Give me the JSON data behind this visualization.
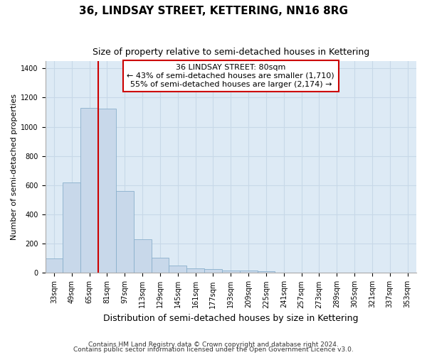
{
  "title": "36, LINDSAY STREET, KETTERING, NN16 8RG",
  "subtitle": "Size of property relative to semi-detached houses in Kettering",
  "xlabel": "Distribution of semi-detached houses by size in Kettering",
  "ylabel": "Number of semi-detached properties",
  "categories": [
    "33sqm",
    "49sqm",
    "65sqm",
    "81sqm",
    "97sqm",
    "113sqm",
    "129sqm",
    "145sqm",
    "161sqm",
    "177sqm",
    "193sqm",
    "209sqm",
    "225sqm",
    "241sqm",
    "257sqm",
    "273sqm",
    "289sqm",
    "305sqm",
    "321sqm",
    "337sqm",
    "353sqm"
  ],
  "values": [
    100,
    620,
    1130,
    1125,
    560,
    230,
    105,
    52,
    33,
    28,
    17,
    17,
    10,
    0,
    0,
    0,
    0,
    0,
    0,
    0,
    0
  ],
  "bar_color": "#c8d8ea",
  "bar_edge_color": "#8ab0cc",
  "vline_x": 2.5,
  "vline_color": "#cc0000",
  "annotation_text": "36 LINDSAY STREET: 80sqm\n← 43% of semi-detached houses are smaller (1,710)\n55% of semi-detached houses are larger (2,174) →",
  "annotation_box_facecolor": "white",
  "annotation_box_edgecolor": "#cc0000",
  "ylim": [
    0,
    1450
  ],
  "yticks": [
    0,
    200,
    400,
    600,
    800,
    1000,
    1200,
    1400
  ],
  "grid_color": "#c8d8e8",
  "background_color": "#ddeaf5",
  "footnote_line1": "Contains HM Land Registry data © Crown copyright and database right 2024.",
  "footnote_line2": "Contains public sector information licensed under the Open Government Licence v3.0.",
  "title_fontsize": 11,
  "subtitle_fontsize": 9,
  "xlabel_fontsize": 9,
  "ylabel_fontsize": 8,
  "tick_fontsize": 7,
  "annot_fontsize": 8
}
